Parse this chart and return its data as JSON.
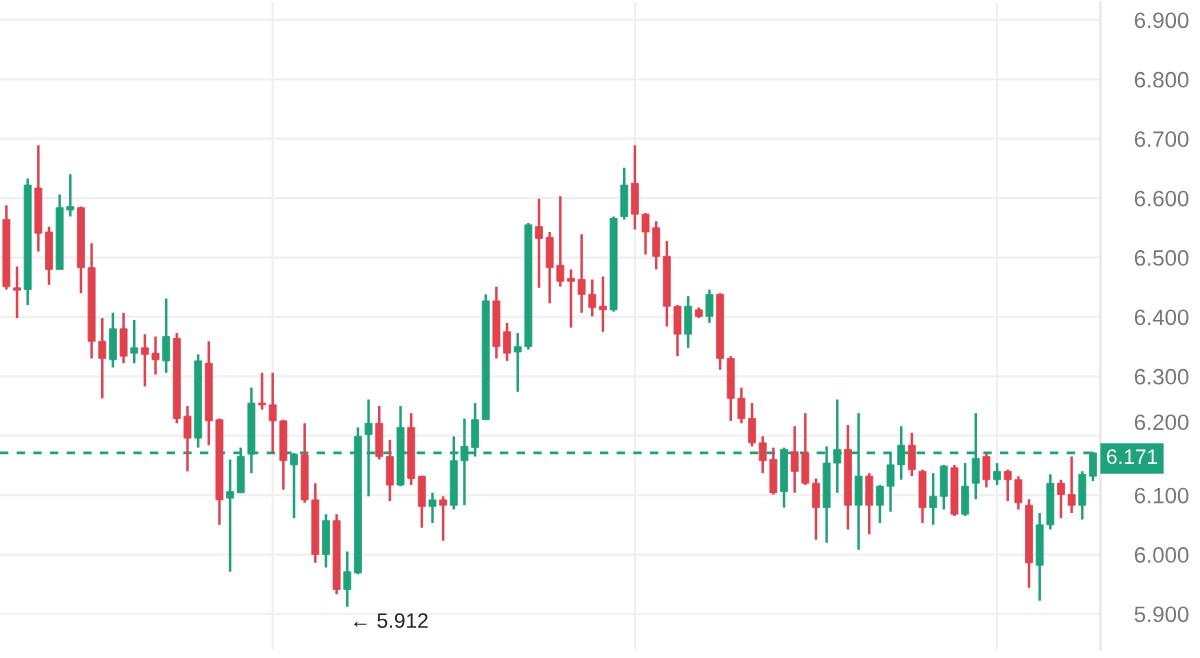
{
  "chart_data": {
    "type": "candlestick",
    "categories": [
      null,
      null,
      null,
      null,
      null,
      null,
      null,
      null,
      null,
      null,
      null,
      null,
      null,
      null,
      null,
      null,
      null,
      null,
      null,
      null,
      null,
      null,
      null,
      null,
      null,
      null,
      null,
      null,
      null,
      null,
      null,
      null,
      null,
      null,
      null,
      null,
      null,
      null,
      null,
      null,
      null,
      null,
      null,
      null,
      null,
      null,
      null,
      null,
      null,
      null,
      null,
      null,
      null,
      null,
      null,
      null,
      null,
      null,
      null,
      null,
      null,
      null,
      null,
      null,
      null,
      null,
      null,
      null,
      null,
      null,
      null,
      null,
      null,
      null,
      null,
      null,
      null,
      null,
      null,
      null,
      null,
      null,
      null,
      null,
      null,
      null,
      null,
      null,
      null,
      null,
      null,
      null,
      null,
      null,
      null,
      null,
      null,
      null,
      null,
      null,
      null,
      null,
      null
    ],
    "ohlc": [
      [
        6.564,
        6.588,
        6.446,
        6.451
      ],
      [
        6.449,
        6.485,
        6.398,
        6.445
      ],
      [
        6.446,
        6.633,
        6.42,
        6.622
      ],
      [
        6.617,
        6.689,
        6.51,
        6.541
      ],
      [
        6.543,
        6.552,
        6.454,
        6.48
      ],
      [
        6.48,
        6.606,
        6.48,
        6.584
      ],
      [
        6.58,
        6.64,
        6.569,
        6.586
      ],
      [
        6.584,
        6.586,
        6.44,
        6.483
      ],
      [
        6.483,
        6.524,
        6.33,
        6.359
      ],
      [
        6.359,
        6.398,
        6.263,
        6.33
      ],
      [
        6.328,
        6.407,
        6.315,
        6.38
      ],
      [
        6.38,
        6.407,
        6.322,
        6.334
      ],
      [
        6.339,
        6.395,
        6.322,
        6.348
      ],
      [
        6.348,
        6.371,
        6.283,
        6.337
      ],
      [
        6.339,
        6.367,
        6.303,
        6.328
      ],
      [
        6.326,
        6.431,
        6.306,
        6.367
      ],
      [
        6.364,
        6.373,
        6.221,
        6.229
      ],
      [
        6.233,
        6.25,
        6.14,
        6.196
      ],
      [
        6.196,
        6.337,
        6.18,
        6.326
      ],
      [
        6.322,
        6.359,
        6.184,
        6.225
      ],
      [
        6.227,
        6.229,
        6.05,
        6.092
      ],
      [
        6.095,
        6.16,
        5.971,
        6.106
      ],
      [
        6.104,
        6.18,
        6.104,
        6.165
      ],
      [
        6.169,
        6.281,
        6.137,
        6.255
      ],
      [
        6.255,
        6.306,
        6.244,
        6.252
      ],
      [
        6.252,
        6.306,
        6.171,
        6.225
      ],
      [
        6.225,
        6.227,
        6.109,
        6.158
      ],
      [
        6.151,
        6.171,
        6.061,
        6.169
      ],
      [
        6.168,
        6.221,
        6.087,
        6.092
      ],
      [
        6.092,
        6.12,
        5.986,
        6.0
      ],
      [
        6.0,
        6.068,
        5.978,
        6.057
      ],
      [
        6.057,
        6.068,
        5.933,
        5.941
      ],
      [
        5.941,
        6.005,
        5.912,
        5.971
      ],
      [
        5.969,
        6.214,
        5.967,
        6.199
      ],
      [
        6.202,
        6.261,
        6.098,
        6.221
      ],
      [
        6.221,
        6.25,
        6.16,
        6.165
      ],
      [
        6.165,
        6.193,
        6.09,
        6.117
      ],
      [
        6.117,
        6.25,
        6.115,
        6.214
      ],
      [
        6.214,
        6.238,
        6.117,
        6.128
      ],
      [
        6.132,
        6.132,
        6.045,
        6.081
      ],
      [
        6.081,
        6.104,
        6.053,
        6.092
      ],
      [
        6.092,
        6.098,
        6.023,
        6.083
      ],
      [
        6.083,
        6.199,
        6.076,
        6.158
      ],
      [
        6.158,
        6.229,
        6.083,
        6.182
      ],
      [
        6.18,
        6.255,
        6.165,
        6.227
      ],
      [
        6.227,
        6.438,
        6.227,
        6.427
      ],
      [
        6.427,
        6.451,
        6.33,
        6.35
      ],
      [
        6.375,
        6.39,
        6.326,
        6.339
      ],
      [
        6.341,
        6.373,
        6.274,
        6.35
      ],
      [
        6.35,
        6.558,
        6.345,
        6.555
      ],
      [
        6.552,
        6.599,
        6.449,
        6.532
      ],
      [
        6.534,
        6.543,
        6.423,
        6.483
      ],
      [
        6.487,
        6.603,
        6.451,
        6.46
      ],
      [
        6.465,
        6.48,
        6.382,
        6.46
      ],
      [
        6.463,
        6.539,
        6.407,
        6.438
      ],
      [
        6.438,
        6.463,
        6.401,
        6.416
      ],
      [
        6.418,
        6.468,
        6.375,
        6.412
      ],
      [
        6.412,
        6.569,
        6.409,
        6.566
      ],
      [
        6.569,
        6.651,
        6.564,
        6.622
      ],
      [
        6.625,
        6.689,
        6.547,
        6.573
      ],
      [
        6.573,
        6.575,
        6.505,
        6.543
      ],
      [
        6.55,
        6.561,
        6.48,
        6.502
      ],
      [
        6.502,
        6.528,
        6.384,
        6.418
      ],
      [
        6.418,
        6.42,
        6.334,
        6.371
      ],
      [
        6.371,
        6.435,
        6.348,
        6.418
      ],
      [
        6.412,
        6.416,
        6.398,
        6.401
      ],
      [
        6.401,
        6.446,
        6.39,
        6.438
      ],
      [
        6.438,
        6.44,
        6.311,
        6.33
      ],
      [
        6.33,
        6.334,
        6.225,
        6.263
      ],
      [
        6.263,
        6.281,
        6.221,
        6.229
      ],
      [
        6.229,
        6.255,
        6.182,
        6.188
      ],
      [
        6.188,
        6.199,
        6.137,
        6.158
      ],
      [
        6.16,
        6.18,
        6.101,
        6.104
      ],
      [
        6.106,
        6.18,
        6.079,
        6.177
      ],
      [
        6.173,
        6.216,
        6.104,
        6.14
      ],
      [
        6.171,
        6.238,
        6.117,
        6.12
      ],
      [
        6.12,
        6.128,
        6.025,
        6.079
      ],
      [
        6.079,
        6.182,
        6.02,
        6.154
      ],
      [
        6.154,
        6.261,
        6.104,
        6.177
      ],
      [
        6.177,
        6.218,
        6.042,
        6.083
      ],
      [
        6.083,
        6.238,
        6.008,
        6.132
      ],
      [
        6.132,
        6.137,
        6.034,
        6.083
      ],
      [
        6.083,
        6.117,
        6.053,
        6.115
      ],
      [
        6.115,
        6.171,
        6.072,
        6.151
      ],
      [
        6.151,
        6.216,
        6.126,
        6.184
      ],
      [
        6.184,
        6.205,
        6.132,
        6.143
      ],
      [
        6.14,
        6.143,
        6.053,
        6.079
      ],
      [
        6.079,
        6.137,
        6.05,
        6.098
      ],
      [
        6.098,
        6.151,
        6.076,
        6.149
      ],
      [
        6.146,
        6.151,
        6.065,
        6.068
      ],
      [
        6.068,
        6.154,
        6.065,
        6.115
      ],
      [
        6.12,
        6.238,
        6.093,
        6.162
      ],
      [
        6.165,
        6.171,
        6.113,
        6.126
      ],
      [
        6.126,
        6.154,
        6.117,
        6.14
      ],
      [
        6.14,
        6.143,
        6.09,
        6.126
      ],
      [
        6.126,
        6.132,
        6.076,
        6.087
      ],
      [
        6.083,
        6.093,
        5.944,
        5.986
      ],
      [
        5.982,
        6.07,
        5.922,
        6.05
      ],
      [
        6.05,
        6.135,
        6.042,
        6.12
      ],
      [
        6.12,
        6.126,
        6.061,
        6.101
      ],
      [
        6.101,
        6.165,
        6.07,
        6.083
      ],
      [
        6.083,
        6.14,
        6.059,
        6.135
      ],
      [
        6.132,
        6.173,
        6.124,
        6.171
      ]
    ],
    "colors": [
      "#e0424e",
      "#e0424e",
      "#1ea27b",
      "#e0424e",
      "#e0424e",
      "#1ea27b",
      "#1ea27b",
      "#e0424e",
      "#e0424e",
      "#e0424e",
      "#1ea27b",
      "#e0424e",
      "#1ea27b",
      "#e0424e",
      "#e0424e",
      "#1ea27b",
      "#e0424e",
      "#e0424e",
      "#1ea27b",
      "#e0424e",
      "#e0424e",
      "#1ea27b",
      "#1ea27b",
      "#1ea27b",
      "#e0424e",
      "#e0424e",
      "#e0424e",
      "#1ea27b",
      "#e0424e",
      "#e0424e",
      "#1ea27b",
      "#e0424e",
      "#1ea27b",
      "#1ea27b",
      "#1ea27b",
      "#e0424e",
      "#e0424e",
      "#1ea27b",
      "#e0424e",
      "#e0424e",
      "#1ea27b",
      "#e0424e",
      "#1ea27b",
      "#1ea27b",
      "#1ea27b",
      "#1ea27b",
      "#e0424e",
      "#e0424e",
      "#1ea27b",
      "#1ea27b",
      "#e0424e",
      "#e0424e",
      "#e0424e",
      "#e0424e",
      "#e0424e",
      "#e0424e",
      "#e0424e",
      "#1ea27b",
      "#1ea27b",
      "#e0424e",
      "#e0424e",
      "#e0424e",
      "#e0424e",
      "#e0424e",
      "#1ea27b",
      "#e0424e",
      "#1ea27b",
      "#e0424e",
      "#e0424e",
      "#e0424e",
      "#e0424e",
      "#e0424e",
      "#e0424e",
      "#1ea27b",
      "#e0424e",
      "#e0424e",
      "#e0424e",
      "#1ea27b",
      "#1ea27b",
      "#e0424e",
      "#1ea27b",
      "#e0424e",
      "#1ea27b",
      "#1ea27b",
      "#1ea27b",
      "#e0424e",
      "#e0424e",
      "#1ea27b",
      "#1ea27b",
      "#e0424e",
      "#1ea27b",
      "#1ea27b",
      "#e0424e",
      "#1ea27b",
      "#e0424e",
      "#e0424e",
      "#e0424e",
      "#1ea27b",
      "#1ea27b",
      "#e0424e",
      "#e0424e",
      "#1ea27b",
      "#1ea27b"
    ],
    "ylim": [
      5.84,
      6.93
    ],
    "yticks": [
      {
        "value": 5.9,
        "label": "5.900"
      },
      {
        "value": 6.0,
        "label": "6.000"
      },
      {
        "value": 6.1,
        "label": "6.100"
      },
      {
        "value": 6.2,
        "label": "6.200"
      },
      {
        "value": 6.3,
        "label": "6.300"
      },
      {
        "value": 6.4,
        "label": "6.400"
      },
      {
        "value": 6.5,
        "label": "6.500"
      },
      {
        "value": 6.6,
        "label": "6.600"
      },
      {
        "value": 6.7,
        "label": "6.700"
      },
      {
        "value": 6.8,
        "label": "6.800"
      },
      {
        "value": 6.9,
        "label": "6.900"
      }
    ],
    "ref_lines": [
      {
        "axis": "y",
        "value": 6.171,
        "label": "6.171",
        "color": "#1ea27b",
        "line_style": "dashed"
      }
    ],
    "annotations": [
      "← 5.912"
    ],
    "grid": true
  }
}
